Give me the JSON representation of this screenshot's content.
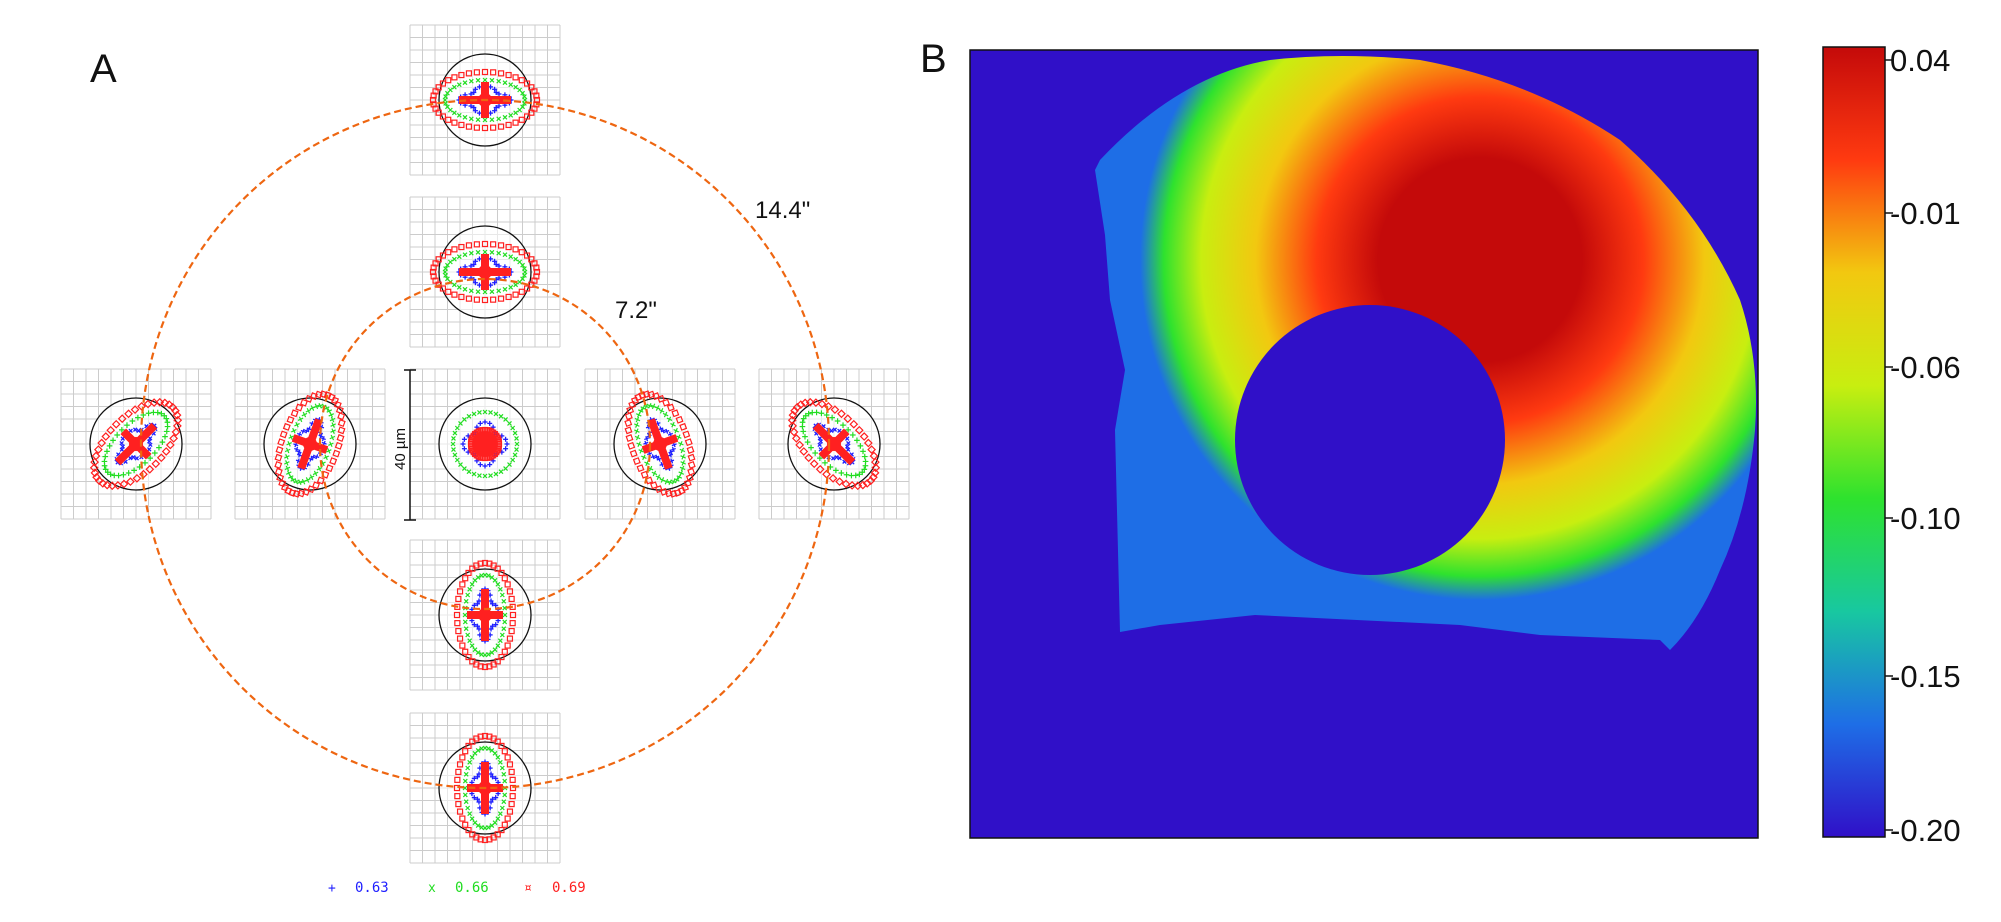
{
  "panel_a": {
    "label": "A",
    "scale_bar_label": "40 µm",
    "rings": [
      {
        "label": "7.2\""
      },
      {
        "label": "14.4\""
      }
    ],
    "legend": [
      {
        "marker": "+",
        "value": "0.63",
        "color": "#1f1fff"
      },
      {
        "marker": "x",
        "value": "0.66",
        "color": "#22dd22"
      },
      {
        "marker": "¤",
        "value": "0.69",
        "color": "#ff2020"
      }
    ],
    "spot_diagrams": [
      {
        "position": "top-outer",
        "ellipse_angle_deg": 90
      },
      {
        "position": "top-inner",
        "ellipse_angle_deg": 90
      },
      {
        "position": "left-outer",
        "ellipse_angle_deg": 45
      },
      {
        "position": "left-inner",
        "ellipse_angle_deg": 20
      },
      {
        "position": "center",
        "ellipse_angle_deg": 0
      },
      {
        "position": "right-inner",
        "ellipse_angle_deg": -20
      },
      {
        "position": "right-outer",
        "ellipse_angle_deg": -45
      },
      {
        "position": "bottom-inner",
        "ellipse_angle_deg": 0
      },
      {
        "position": "bottom-outer",
        "ellipse_angle_deg": 0
      }
    ],
    "colors": {
      "ring": "#ee6611",
      "grid": "#cccccc"
    }
  },
  "panel_b": {
    "label": "B",
    "colorbar": {
      "ticks": [
        "0.04",
        "-0.01",
        "-0.06",
        "-0.10",
        "-0.15",
        "-0.20"
      ],
      "stops": [
        "#3010c8",
        "#1e6ee6",
        "#18c8a0",
        "#2ee22e",
        "#c8ee10",
        "#f2c810",
        "#ff3a10",
        "#c40a0a"
      ]
    },
    "background_color": "#3010c8"
  }
}
